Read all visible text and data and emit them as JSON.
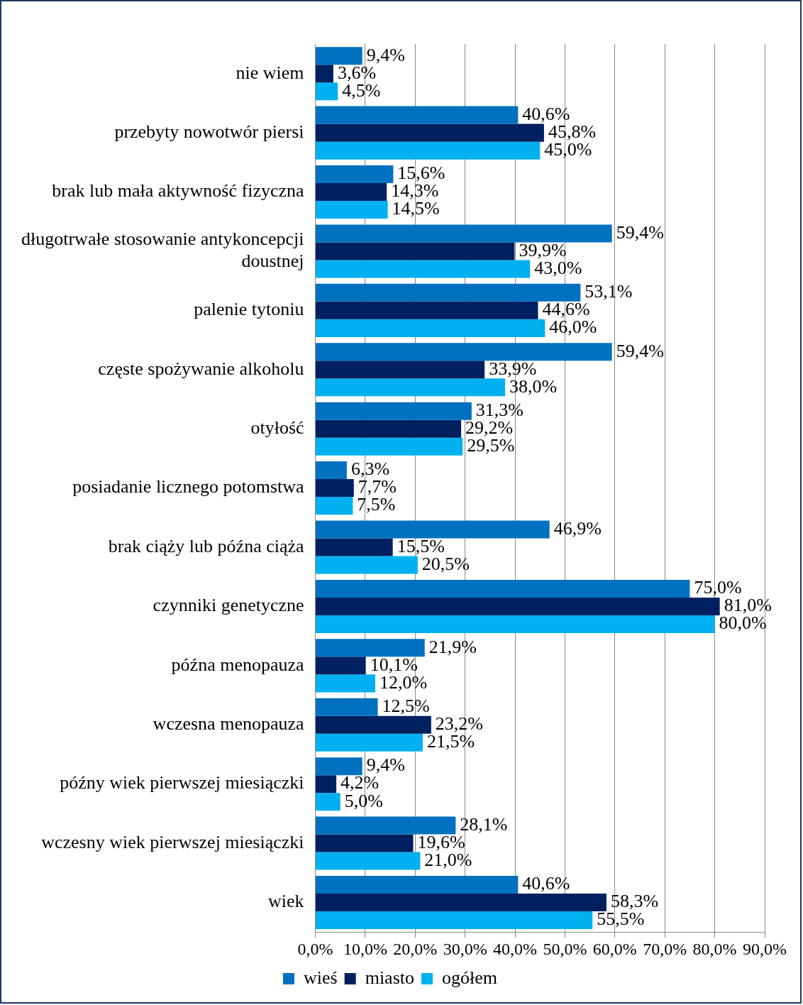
{
  "chart_data": {
    "type": "bar",
    "orientation": "horizontal",
    "categories": [
      "nie wiem",
      "przebyty nowotwór piersi",
      "brak lub mała aktywność fizyczna",
      "długotrwałe stosowanie antykoncepcji doustnej",
      "palenie tytoniu",
      "częste spożywanie alkoholu",
      "otyłość",
      "posiadanie licznego potomstwa",
      "brak ciąży lub późna ciąża",
      "czynniki genetyczne",
      "późna menopauza",
      "wczesna menopauza",
      "późny wiek pierwszej miesiączki",
      "wczesny wiek pierwszej miesiączki",
      "wiek"
    ],
    "series": [
      {
        "name": "wieś",
        "color": "#0070c0",
        "values": [
          9.4,
          40.6,
          15.6,
          59.4,
          53.1,
          59.4,
          31.3,
          6.3,
          46.9,
          75.0,
          21.9,
          12.5,
          9.4,
          28.1,
          40.6
        ],
        "value_labels": [
          "9,4%",
          "40,6%",
          "15,6%",
          "59,4%",
          "53,1%",
          "59,4%",
          "31,3%",
          "6,3%",
          "46,9%",
          "75,0%",
          "21,9%",
          "12,5%",
          "9,4%",
          "28,1%",
          "40,6%"
        ]
      },
      {
        "name": "miasto",
        "color": "#002060",
        "values": [
          3.6,
          45.8,
          14.3,
          39.9,
          44.6,
          33.9,
          29.2,
          7.7,
          15.5,
          81.0,
          10.1,
          23.2,
          4.2,
          19.6,
          58.3
        ],
        "value_labels": [
          "3,6%",
          "45,8%",
          "14,3%",
          "39,9%",
          "44,6%",
          "33,9%",
          "29,2%",
          "7,7%",
          "15,5%",
          "81,0%",
          "10,1%",
          "23,2%",
          "4,2%",
          "19,6%",
          "58,3%"
        ]
      },
      {
        "name": "ogółem",
        "color": "#00b0f0",
        "values": [
          4.5,
          45.0,
          14.5,
          43.0,
          46.0,
          38.0,
          29.5,
          7.5,
          20.5,
          80.0,
          12.0,
          21.5,
          5.0,
          21.0,
          55.5
        ],
        "value_labels": [
          "4,5%",
          "45,0%",
          "14,5%",
          "43,0%",
          "46,0%",
          "38,0%",
          "29,5%",
          "7,5%",
          "20,5%",
          "80,0%",
          "12,0%",
          "21,5%",
          "5,0%",
          "21,0%",
          "55,5%"
        ]
      }
    ],
    "xlim": [
      0,
      90
    ],
    "xticks": [
      {
        "value": 0,
        "label": "0,0%"
      },
      {
        "value": 10,
        "label": "10,0%"
      },
      {
        "value": 20,
        "label": "20,0%"
      },
      {
        "value": 30,
        "label": "30,0%"
      },
      {
        "value": 40,
        "label": "40,0%"
      },
      {
        "value": 50,
        "label": "50,0%"
      },
      {
        "value": 60,
        "label": "60,0%"
      },
      {
        "value": 70,
        "label": "70,0%"
      },
      {
        "value": 80,
        "label": "80,0%"
      },
      {
        "value": 90,
        "label": "90,0%"
      }
    ],
    "grid": "x",
    "legend": "bottom"
  }
}
